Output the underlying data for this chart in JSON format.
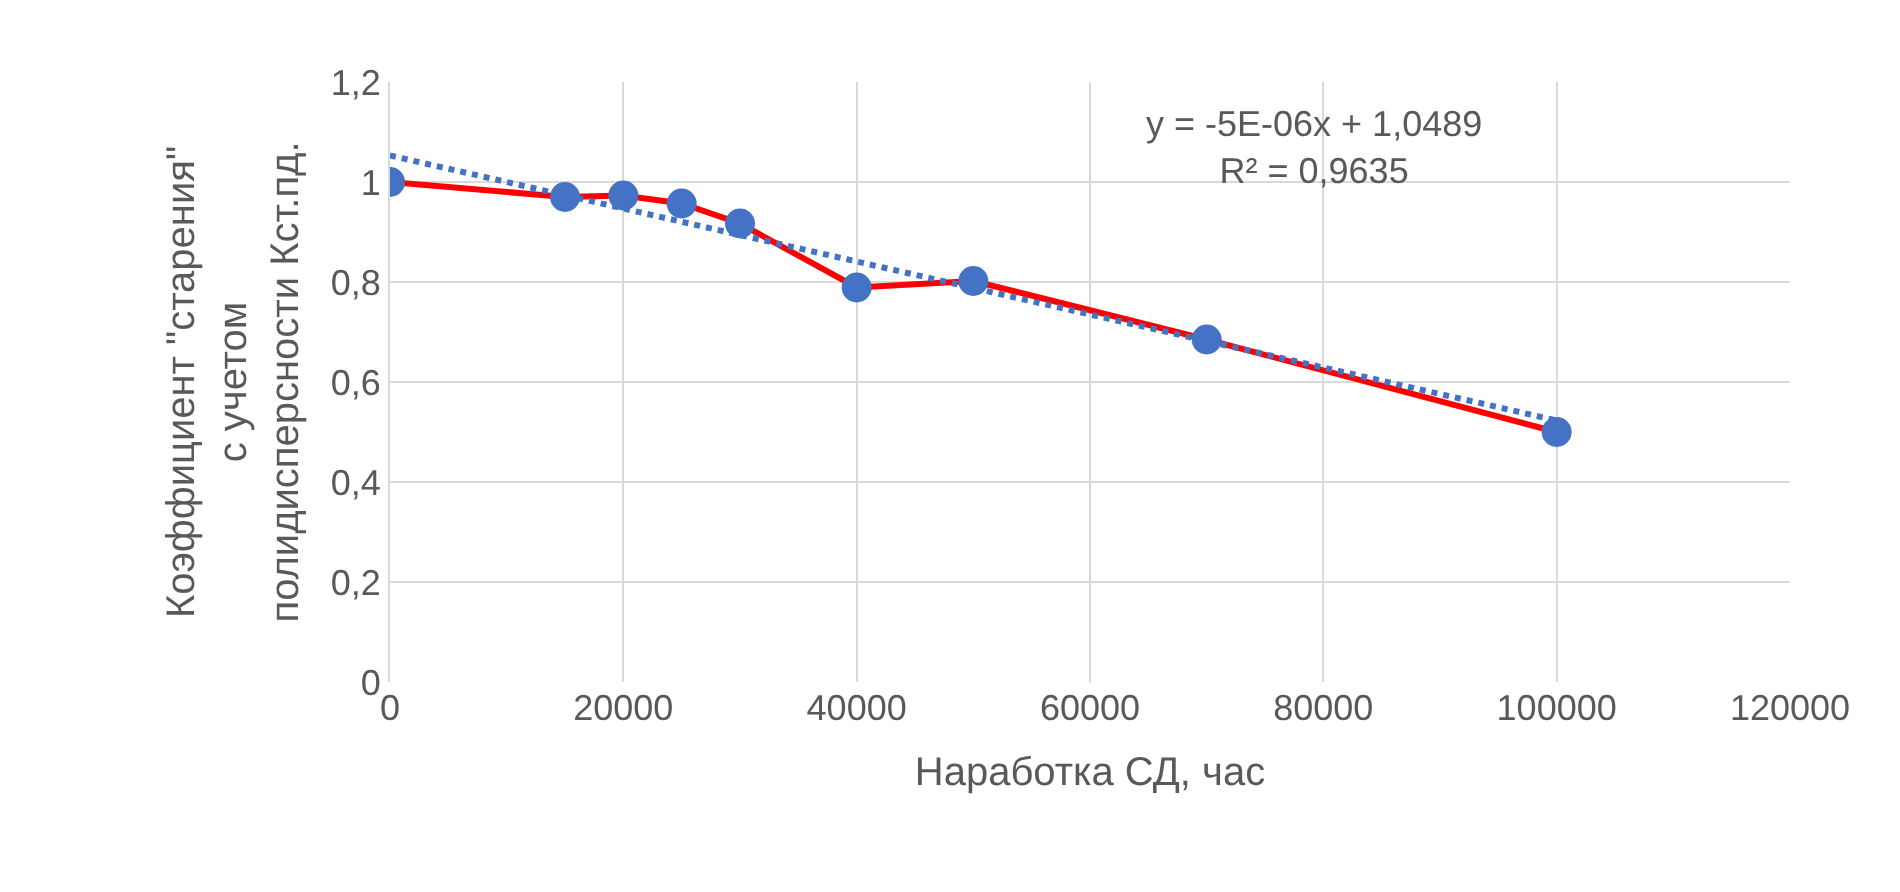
{
  "chart_data": {
    "type": "line",
    "xlabel": "Наработка СД, час",
    "ylabel": "Коэффициент \"старения\"\nс учетом\nполидисперсности Кст.пд.",
    "x": [
      0,
      15000,
      20000,
      25000,
      30000,
      40000,
      50000,
      70000,
      100000
    ],
    "series": [
      {
        "color": "#ff0000",
        "colors": [
          "#4472c4",
          "#4472c4",
          "#4472c4",
          "#4472c4",
          "#4472c4",
          "#4472c4",
          "#4472c4",
          "#4472c4",
          "#4472c4"
        ],
        "marker": "circle",
        "line_style": "solid",
        "values": [
          1.0,
          0.97,
          0.973,
          0.957,
          0.917,
          0.789,
          0.802,
          0.685,
          0.5
        ]
      },
      {
        "type": "line",
        "color": "#4472c4",
        "marker": "none",
        "line_style": "dotted",
        "x": [
          0,
          100000
        ],
        "values": [
          1.053,
          0.523
        ]
      }
    ],
    "annotations": [
      "y = -5E-06x + 1,0489\nR² = 0,9635"
    ],
    "xlim": [
      0,
      120000
    ],
    "xticks": [
      0,
      20000,
      40000,
      60000,
      80000,
      100000,
      120000
    ],
    "ylim": [
      0,
      1.2
    ],
    "yticks": [
      0,
      {
        "value": 0.2,
        "label": "0,2"
      },
      {
        "value": 0.4,
        "label": "0,4"
      },
      {
        "value": 0.6,
        "label": "0,6"
      },
      {
        "value": 0.8,
        "label": "0,8"
      },
      1,
      {
        "value": 1.2,
        "label": "1,2"
      }
    ],
    "grid": true
  }
}
